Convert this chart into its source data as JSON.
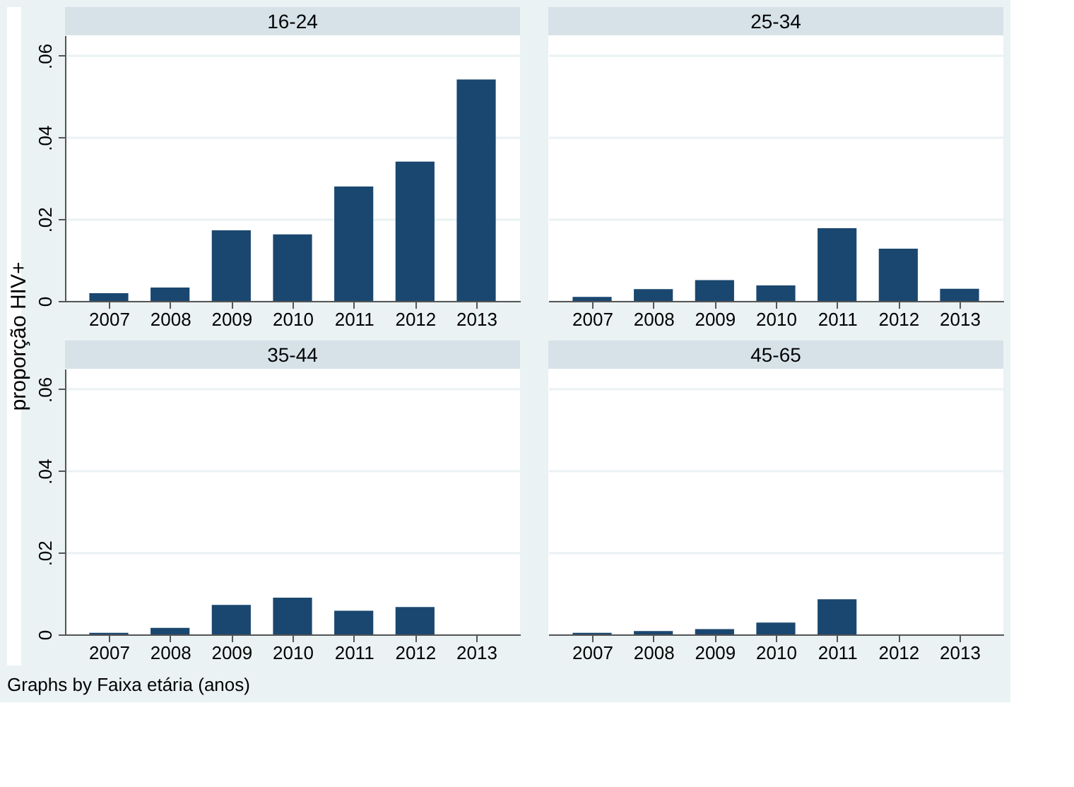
{
  "chart_data": [
    {
      "type": "bar",
      "title": "16-24",
      "ylabel": "proporção HIV+",
      "categories": [
        "2007",
        "2008",
        "2009",
        "2010",
        "2011",
        "2012",
        "2013"
      ],
      "values": [
        0.0019,
        0.0033,
        0.0173,
        0.0163,
        0.028,
        0.0341,
        0.0542
      ],
      "color": "#1a476f",
      "ylim": [
        0,
        0.065
      ],
      "yticks": [
        {
          "value": 0,
          "label": "0"
        },
        {
          "value": 0.02,
          "label": ".02"
        },
        {
          "value": 0.04,
          "label": ".04"
        },
        {
          "value": 0.06,
          "label": ".06"
        }
      ],
      "grid": "y"
    },
    {
      "type": "bar",
      "title": "25-34",
      "categories": [
        "2007",
        "2008",
        "2009",
        "2010",
        "2011",
        "2012",
        "2013"
      ],
      "values": [
        0.001,
        0.0029,
        0.0051,
        0.0038,
        0.0178,
        0.0128,
        0.003
      ],
      "color": "#1a476f",
      "ylim": [
        0,
        0.065
      ],
      "yticks": [
        {
          "value": 0,
          "label": null
        },
        {
          "value": 0.02,
          "label": null
        },
        {
          "value": 0.04,
          "label": null
        },
        {
          "value": 0.06,
          "label": null
        }
      ],
      "grid": "y",
      "tick_labels": "x"
    },
    {
      "type": "bar",
      "title": "35-44",
      "categories": [
        "2007",
        "2008",
        "2009",
        "2010",
        "2011",
        "2012",
        "2013"
      ],
      "values": [
        0.0004,
        0.0016,
        0.0072,
        0.009,
        0.0058,
        0.0067,
        0
      ],
      "color": "#1a476f",
      "ylim": [
        0,
        0.065
      ],
      "yticks": [
        {
          "value": 0,
          "label": "0"
        },
        {
          "value": 0.02,
          "label": ".02"
        },
        {
          "value": 0.04,
          "label": ".04"
        },
        {
          "value": 0.06,
          "label": ".06"
        }
      ],
      "grid": "y"
    },
    {
      "type": "bar",
      "title": "45-65",
      "categories": [
        "2007",
        "2008",
        "2009",
        "2010",
        "2011",
        "2012",
        "2013"
      ],
      "values": [
        0.0004,
        0.0008,
        0.0013,
        0.0029,
        0.0086,
        0,
        0
      ],
      "color": "#1a476f",
      "ylim": [
        0,
        0.065
      ],
      "yticks": [
        {
          "value": 0,
          "label": null
        },
        {
          "value": 0.02,
          "label": null
        },
        {
          "value": 0.04,
          "label": null
        },
        {
          "value": 0.06,
          "label": null
        }
      ],
      "grid": "y",
      "tick_labels": "x",
      "annotations": [
        "Graphs by Faixa etária (anos)"
      ]
    }
  ]
}
